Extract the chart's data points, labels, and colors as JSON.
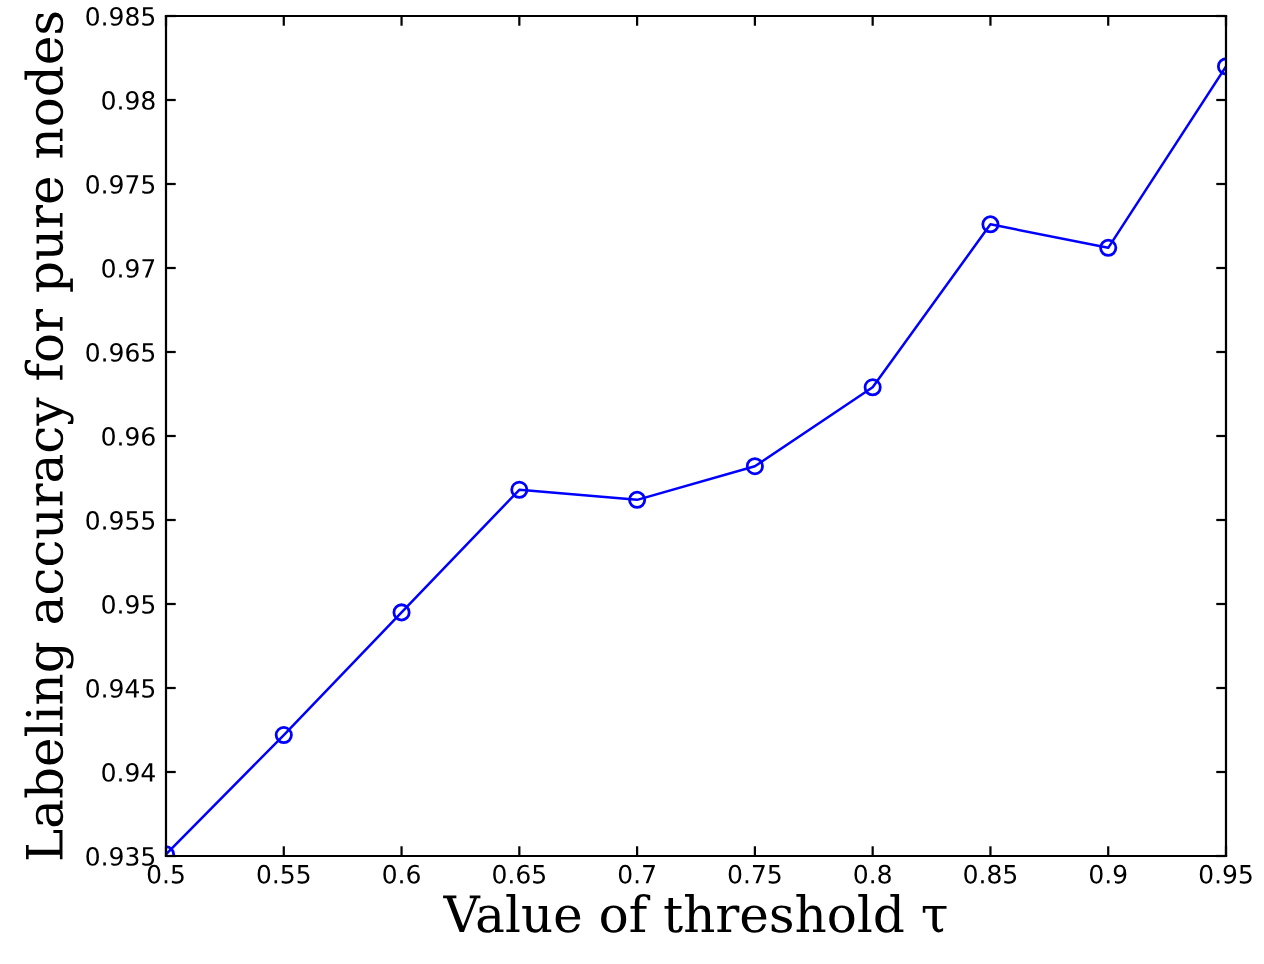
{
  "chart_data": {
    "type": "line",
    "xlabel": "Value of threshold τ",
    "ylabel": "Labeling accuracy for pure nodes",
    "x": [
      0.5,
      0.55,
      0.6,
      0.65,
      0.7,
      0.75,
      0.8,
      0.85,
      0.9,
      0.95
    ],
    "series": [
      {
        "color": "#0000ff",
        "values": [
          0.9351,
          0.9422,
          0.9495,
          0.9568,
          0.9562,
          0.9582,
          0.9629,
          0.9726,
          0.9712,
          0.982
        ]
      }
    ],
    "xlim": [
      0.5,
      0.95
    ],
    "ylim": [
      0.935,
      0.985
    ],
    "xticks": [
      0.5,
      0.55,
      0.6,
      0.65,
      0.7,
      0.75,
      0.8,
      0.85,
      0.9,
      0.95
    ],
    "yticks": [
      0.935,
      0.94,
      0.945,
      0.95,
      0.955,
      0.96,
      0.965,
      0.97,
      0.975,
      0.98,
      0.985
    ],
    "marker": "circle",
    "line_style": "solid",
    "grid": false,
    "legend": false
  }
}
